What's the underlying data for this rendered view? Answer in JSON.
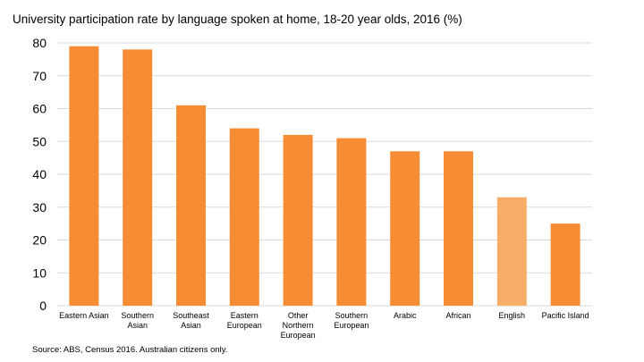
{
  "chart_data": {
    "type": "bar",
    "title": "University participation rate by language spoken at home, 18-20 year olds, 2016 (%)",
    "source": "Source: ABS, Census 2016. Australian citizens only.",
    "categories": [
      [
        "Eastern Asian"
      ],
      [
        "Southern",
        "Asian"
      ],
      [
        "Southeast",
        "Asian"
      ],
      [
        "Eastern",
        "European"
      ],
      [
        "Other",
        "Northern",
        "European"
      ],
      [
        "Southern",
        "European"
      ],
      [
        "Arabic"
      ],
      [
        "African"
      ],
      [
        "English"
      ],
      [
        "Pacific Island"
      ]
    ],
    "values": [
      79,
      78,
      61,
      54,
      52,
      51,
      47,
      47,
      33,
      25
    ],
    "highlight_index": 8,
    "colors": {
      "bar": "#f68d35",
      "highlight": "#f7ac67",
      "grid": "#d9d9d9"
    },
    "ylim": [
      0,
      80
    ],
    "yticks": [
      0,
      10,
      20,
      30,
      40,
      50,
      60,
      70,
      80
    ],
    "xlabel": "",
    "ylabel": ""
  }
}
